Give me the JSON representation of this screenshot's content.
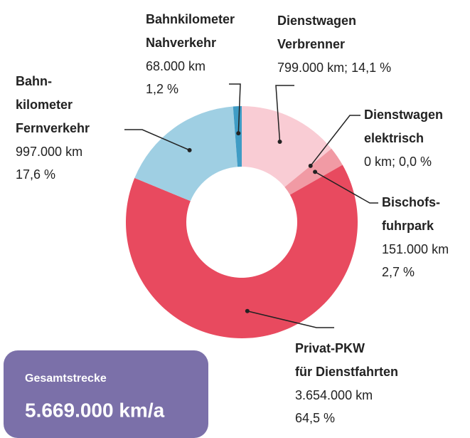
{
  "chart_data": {
    "type": "donut",
    "categories": [
      [
        "Dienstwagen",
        "Verbrenner"
      ],
      [
        "Dienstwagen",
        "elektrisch"
      ],
      [
        "Bischofs-",
        "fuhrpark"
      ],
      [
        "Privat-PKW",
        "für Dienstfahrten"
      ],
      [
        "Bahn-",
        "kilometer",
        "Fernverkehr"
      ],
      [
        "Bahnkilometer",
        "Nahverkehr"
      ]
    ],
    "values": [
      14.1,
      0.0,
      2.7,
      64.5,
      17.6,
      1.2
    ],
    "value_labels": [
      [
        "799.000 km; 14,1 %"
      ],
      [
        "0 km; 0,0 %"
      ],
      [
        "151.000 km",
        "2,7 %"
      ],
      [
        "3.654.000 km",
        "64,5 %"
      ],
      [
        "997.000  km",
        "17,6 %"
      ],
      [
        "68.000 km",
        "1,2 %"
      ]
    ],
    "colors": [
      "#f9ccd4",
      "#f5a9b2",
      "#f19aa4",
      "#e84a5f",
      "#9fcfe3",
      "#3f9cc5"
    ],
    "total": {
      "label": "Gesamtstrecke",
      "value": "5.669.000 km/a"
    }
  }
}
